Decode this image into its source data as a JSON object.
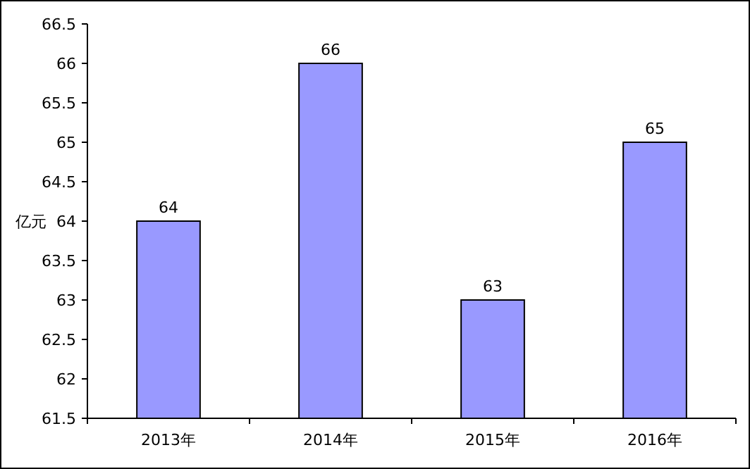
{
  "chart_data": {
    "type": "bar",
    "ylabel": "亿元",
    "categories": [
      "2013年",
      "2014年",
      "2015年",
      "2016年"
    ],
    "values": [
      64,
      66,
      63,
      65
    ],
    "color": "#9999ff",
    "ylim": [
      61.5,
      66.5
    ],
    "yticks": [
      61.5,
      62,
      62.5,
      63,
      63.5,
      64,
      64.5,
      65,
      65.5,
      66,
      66.5
    ],
    "data_labels": true
  }
}
